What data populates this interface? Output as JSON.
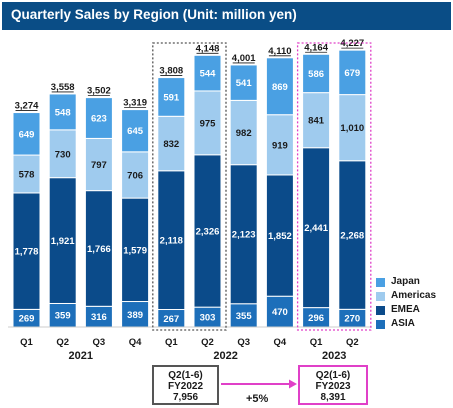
{
  "chart_data": {
    "type": "bar",
    "stacked": true,
    "title": "Quarterly Sales by Region (Unit: million yen)",
    "categories": [
      "Q1",
      "Q2",
      "Q3",
      "Q4",
      "Q1",
      "Q2",
      "Q3",
      "Q4",
      "Q1",
      "Q2"
    ],
    "years": [
      {
        "label": "2021",
        "from": 0,
        "to": 3
      },
      {
        "label": "2022",
        "from": 4,
        "to": 7
      },
      {
        "label": "2023",
        "from": 8,
        "to": 9
      }
    ],
    "totals": [
      "3,274",
      "3,558",
      "3,502",
      "3,319",
      "3,808",
      "4,148",
      "4,001",
      "4,110",
      "4,164",
      "4,227"
    ],
    "series": [
      {
        "name": "ASIA",
        "color": "#1d6fba",
        "values": [
          269,
          359,
          316,
          389,
          267,
          303,
          355,
          470,
          296,
          270
        ],
        "labels": [
          "269",
          "359",
          "316",
          "389",
          "267",
          "303",
          "355",
          "470",
          "296",
          "270"
        ]
      },
      {
        "name": "EMEA",
        "color": "#0b4b8a",
        "values": [
          1778,
          1921,
          1766,
          1579,
          2118,
          2326,
          2123,
          1852,
          2441,
          2268
        ],
        "labels": [
          "1,778",
          "1,921",
          "1,766",
          "1,579",
          "2,118",
          "2,326",
          "2,123",
          "1,852",
          "2,441",
          "2,268"
        ]
      },
      {
        "name": "Americas",
        "color": "#9fcbee",
        "values": [
          578,
          730,
          797,
          706,
          832,
          975,
          982,
          919,
          841,
          1010
        ],
        "labels": [
          "578",
          "730",
          "797",
          "706",
          "832",
          "975",
          "982",
          "919",
          "841",
          "1,010"
        ]
      },
      {
        "name": "Japan",
        "color": "#4aa0e3",
        "values": [
          649,
          548,
          623,
          645,
          591,
          544,
          541,
          869,
          586,
          679
        ],
        "labels": [
          "649",
          "548",
          "623",
          "645",
          "591",
          "544",
          "541",
          "869",
          "586",
          "679"
        ]
      }
    ],
    "ylim": [
      0,
      4500
    ],
    "legend_position": "bottom-right",
    "highlights": [
      {
        "from": 4,
        "to": 5,
        "style": "dotted",
        "color": "#555555"
      },
      {
        "from": 8,
        "to": 9,
        "style": "dotted",
        "color": "#e040c8"
      }
    ]
  },
  "legend_order": [
    "Japan",
    "Americas",
    "EMEA",
    "ASIA"
  ],
  "comparison": {
    "box1": {
      "line1": "Q2(1-6)",
      "line2": "FY2022",
      "line3": "7,956"
    },
    "box2": {
      "line1": "Q2(1-6)",
      "line2": "FY2023",
      "line3": "8,391"
    },
    "growth": "+5%",
    "arrow_color": "#e040c8"
  }
}
